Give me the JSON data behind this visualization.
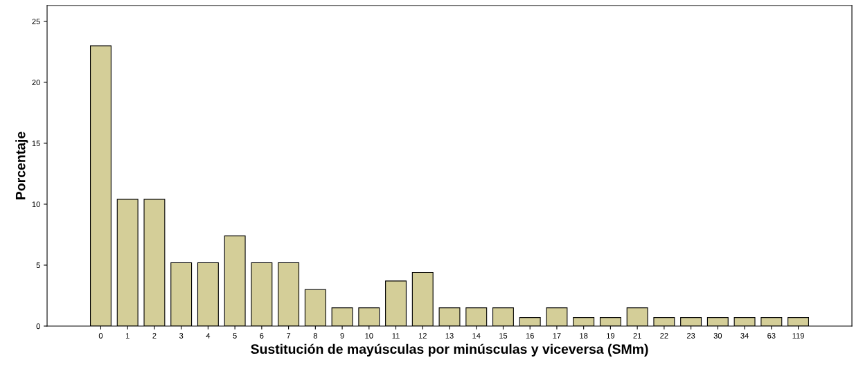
{
  "chart_data": {
    "type": "bar",
    "xlabel": "Sustitución de mayúsculas por minúsculas y viceversa (SMm)",
    "ylabel": "Porcentaje",
    "categories": [
      "0",
      "1",
      "2",
      "3",
      "4",
      "5",
      "6",
      "7",
      "8",
      "9",
      "10",
      "11",
      "12",
      "13",
      "14",
      "15",
      "16",
      "17",
      "18",
      "19",
      "21",
      "22",
      "23",
      "30",
      "34",
      "63",
      "119"
    ],
    "values": [
      23.0,
      10.4,
      10.4,
      5.2,
      5.2,
      7.4,
      5.2,
      5.2,
      3.0,
      1.5,
      1.5,
      3.7,
      4.4,
      1.5,
      1.5,
      1.5,
      0.7,
      1.5,
      0.7,
      0.7,
      1.5,
      0.7,
      0.7,
      0.7,
      0.7,
      0.7,
      0.7
    ],
    "color": "#d4ce98",
    "ylim": [
      0,
      26.3
    ],
    "yticks": [
      0,
      5,
      10,
      15,
      20,
      25
    ],
    "grid": false,
    "legend": false
  }
}
